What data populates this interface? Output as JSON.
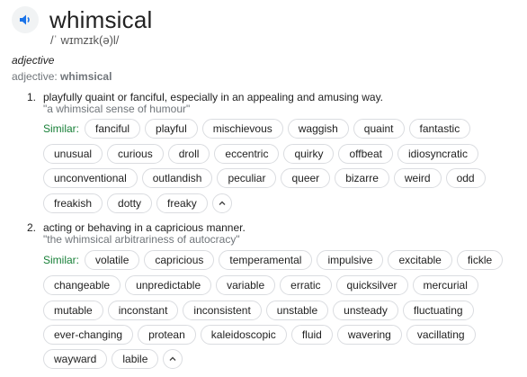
{
  "entry": {
    "word": "whimsical",
    "phonetic": "/ˈ wɪmzɪk(ə)l/",
    "part_of_speech": "adjective",
    "pos_prefix": "adjective:",
    "pos_word": "whimsical"
  },
  "icons": {
    "speaker": "speaker-icon",
    "toggle": "chevron-up-icon"
  },
  "colors": {
    "similar_label": "#188038",
    "example_text": "#70757a",
    "chip_border": "#dadce0",
    "speaker_bg": "#f1f3f4"
  },
  "senses": [
    {
      "number": "1.",
      "definition": "playfully quaint or fanciful, especially in an appealing and amusing way.",
      "example": "\"a whimsical sense of humour\"",
      "similar_label": "Similar:",
      "rows": [
        [
          "fanciful",
          "playful",
          "mischievous",
          "waggish",
          "quaint",
          "fantastic"
        ],
        [
          "unusual",
          "curious",
          "droll",
          "eccentric",
          "quirky",
          "offbeat",
          "idiosyncratic"
        ],
        [
          "unconventional",
          "outlandish",
          "peculiar",
          "queer",
          "bizarre",
          "weird",
          "odd"
        ],
        [
          "freakish",
          "dotty",
          "freaky"
        ]
      ]
    },
    {
      "number": "2.",
      "definition": "acting or behaving in a capricious manner.",
      "example": "\"the whimsical arbitrariness of autocracy\"",
      "similar_label": "Similar:",
      "rows": [
        [
          "volatile",
          "capricious",
          "temperamental",
          "impulsive",
          "excitable",
          "fickle"
        ],
        [
          "changeable",
          "unpredictable",
          "variable",
          "erratic",
          "quicksilver",
          "mercurial"
        ],
        [
          "mutable",
          "inconstant",
          "inconsistent",
          "unstable",
          "unsteady",
          "fluctuating"
        ],
        [
          "ever-changing",
          "protean",
          "kaleidoscopic",
          "fluid",
          "wavering",
          "vacillating"
        ],
        [
          "wayward",
          "labile"
        ]
      ]
    }
  ]
}
